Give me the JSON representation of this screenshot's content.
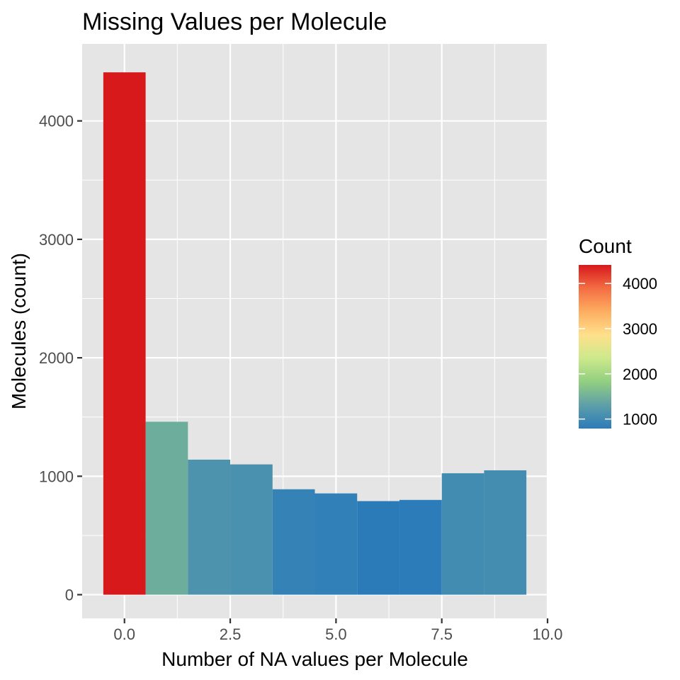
{
  "chart_data": {
    "type": "bar",
    "title": "Missing Values per Molecule",
    "xlabel": "Number of NA values per Molecule",
    "ylabel": "Molecules (count)",
    "x": [
      0,
      1,
      2,
      3,
      4,
      5,
      6,
      7,
      8,
      9
    ],
    "values": [
      4410,
      1460,
      1140,
      1100,
      890,
      855,
      790,
      800,
      1025,
      1050
    ],
    "bin_width": 1,
    "xlim": [
      -1,
      10
    ],
    "ylim": [
      -200,
      4650
    ],
    "x_ticks": [
      0.0,
      2.5,
      5.0,
      7.5,
      10.0
    ],
    "x_tick_labels": [
      "0.0",
      "2.5",
      "5.0",
      "7.5",
      "10.0"
    ],
    "y_ticks": [
      0,
      1000,
      2000,
      3000,
      4000
    ],
    "y_tick_labels": [
      "0",
      "1000",
      "2000",
      "3000",
      "4000"
    ],
    "grid": true,
    "legend": {
      "title": "Count",
      "placement": "right",
      "range": [
        790,
        4410
      ],
      "ticks": [
        1000,
        2000,
        3000,
        4000
      ],
      "tick_labels": [
        "1000",
        "2000",
        "3000",
        "4000"
      ]
    },
    "colors": {
      "panel_background": "#E5E5E5",
      "grid": "#FFFFFF",
      "gradient_low": "#2B7BB9",
      "gradient_high": "#D7191C",
      "gradient_stops": [
        "#2B7BB9",
        "#5E9FA8",
        "#91CF80",
        "#CCE98C",
        "#FEE08B",
        "#FDAE61",
        "#F46D43",
        "#D7191C"
      ]
    }
  }
}
